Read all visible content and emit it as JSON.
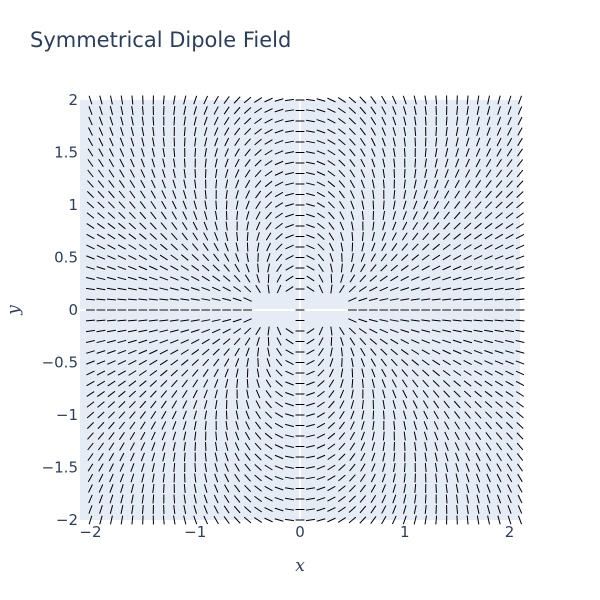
{
  "chart_data": {
    "type": "quiver",
    "title": "Symmetrical Dipole Field",
    "xlabel": "x",
    "ylabel": "y",
    "xlim": [
      -2.1,
      2.1
    ],
    "ylim": [
      -2,
      2
    ],
    "x_ticks": [
      "−2",
      "−1",
      "0",
      "1",
      "2"
    ],
    "x_tick_values": [
      -2,
      -1,
      0,
      1,
      2
    ],
    "y_ticks": [
      "−2",
      "−1.5",
      "−1",
      "−0.5",
      "0",
      "0.5",
      "1",
      "1.5",
      "2"
    ],
    "y_tick_values": [
      -2,
      -1.5,
      -1,
      -0.5,
      0,
      0.5,
      1,
      1.5,
      2
    ],
    "grid": {
      "x_start": -2,
      "x_end": 2.1,
      "x_step": 0.1,
      "y_start": -2,
      "y_end": 2,
      "y_step": 0.1
    },
    "field": {
      "form": "dipole",
      "charges": [
        {
          "q": 1,
          "x": -0.25,
          "y": 0
        },
        {
          "q": -1,
          "x": 0.25,
          "y": 0
        }
      ],
      "exclusion_radius": 0.2,
      "segment_length": 0.085
    },
    "colors": {
      "plot_bg": "#e5ecf6",
      "grid": "#ffffff",
      "segment": "#000000",
      "text": "#2a3f5f"
    }
  }
}
